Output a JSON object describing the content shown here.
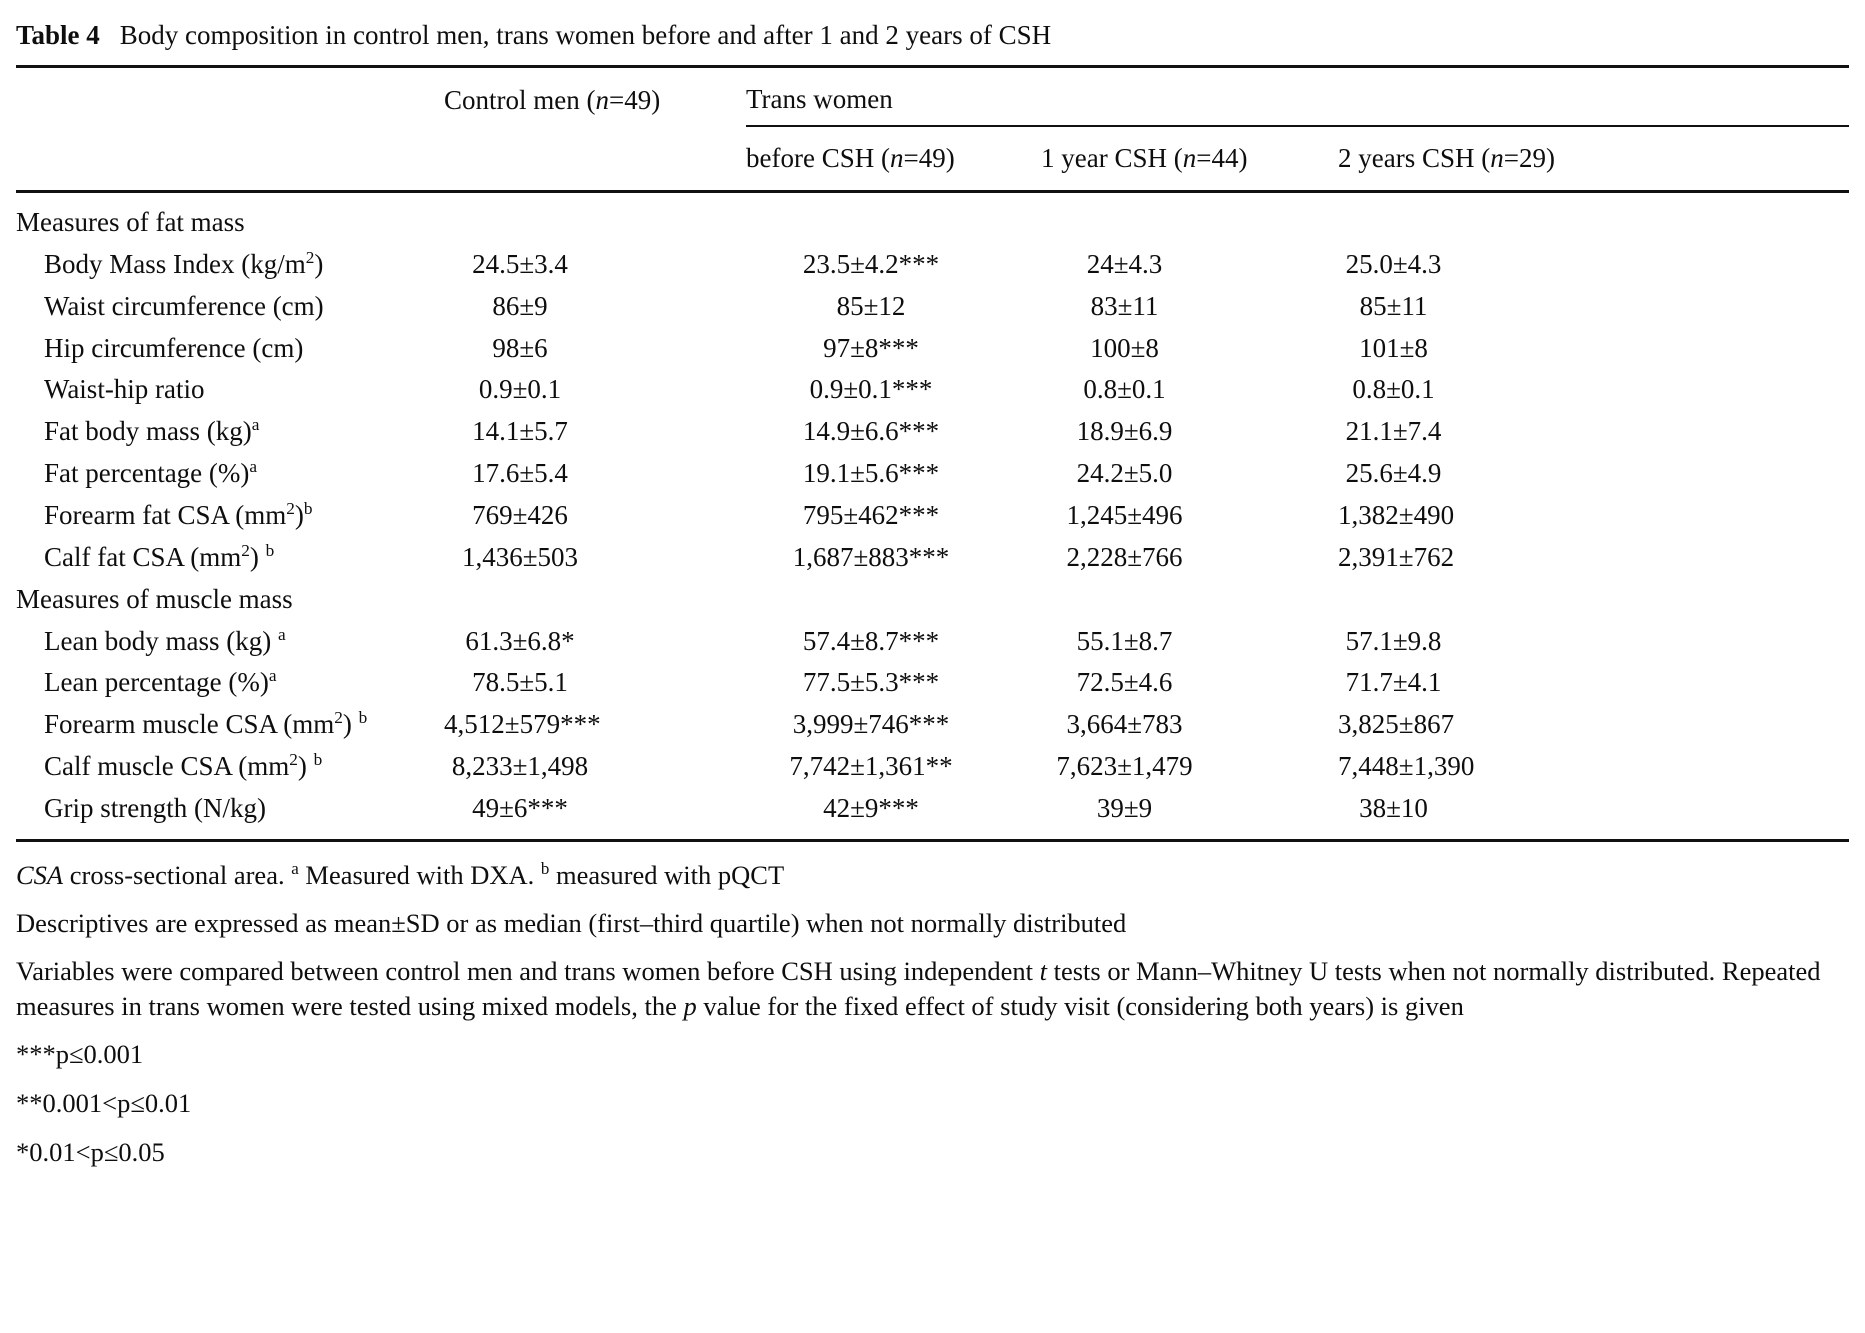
{
  "title": {
    "label": "Table 4",
    "text": "Body composition in control men, trans women before and after 1 and 2 years of CSH"
  },
  "table": {
    "header": {
      "control_col": "Control men (~{n}=49)",
      "group": "Trans women",
      "sub_cols": [
        "before CSH (~{n}=49)",
        "1 year CSH (~{n}=44)",
        "2 years CSH (~{n}=29)"
      ]
    },
    "sections": [
      {
        "title": "Measures of fat mass",
        "rows": [
          {
            "label": "Body Mass Index (kg/m^{2})",
            "values": [
              "24.5±3.4",
              "23.5±4.2***",
              "24±4.3",
              "25.0±4.3"
            ]
          },
          {
            "label": "Waist circumference (cm)",
            "values": [
              "86±9",
              "85±12",
              "83±11",
              "85±11"
            ]
          },
          {
            "label": "Hip circumference (cm)",
            "values": [
              "98±6",
              "97±8***",
              "100±8",
              "101±8"
            ]
          },
          {
            "label": "Waist-hip ratio",
            "values": [
              "0.9±0.1",
              "0.9±0.1***",
              "0.8±0.1",
              "0.8±0.1"
            ]
          },
          {
            "label": "Fat body mass (kg)^{a}",
            "values": [
              "14.1±5.7",
              "14.9±6.6***",
              "18.9±6.9",
              "21.1±7.4"
            ]
          },
          {
            "label": "Fat percentage (%)^{a}",
            "values": [
              "17.6±5.4",
              "19.1±5.6***",
              "24.2±5.0",
              "25.6±4.9"
            ]
          },
          {
            "label": "Forearm fat CSA (mm^{2})^{b}",
            "values": [
              "769±426",
              "795±462***",
              "1,245±496",
              "1,382±490"
            ]
          },
          {
            "label": "Calf fat CSA (mm^{2}) ^{b}",
            "values": [
              "1,436±503",
              "1,687±883***",
              "2,228±766",
              "2,391±762"
            ]
          }
        ]
      },
      {
        "title": "Measures of muscle mass",
        "rows": [
          {
            "label": "Lean body mass (kg) ^{a}",
            "values": [
              "61.3±6.8*",
              "57.4±8.7***",
              "55.1±8.7",
              "57.1±9.8"
            ]
          },
          {
            "label": "Lean percentage (%)^{a}",
            "values": [
              "78.5±5.1",
              "77.5±5.3***",
              "72.5±4.6",
              "71.7±4.1"
            ]
          },
          {
            "label": "Forearm muscle CSA (mm^{2}) ^{b}",
            "values": [
              "4,512±579***",
              "3,999±746***",
              "3,664±783",
              "3,825±867"
            ]
          },
          {
            "label": "Calf muscle CSA (mm^{2}) ^{b}",
            "values": [
              "8,233±1,498",
              "7,742±1,361**",
              "7,623±1,479",
              "7,448±1,390"
            ]
          },
          {
            "label": "Grip strength (N/kg)",
            "values": [
              "49±6***",
              "42±9***",
              "39±9",
              "38±10"
            ]
          }
        ]
      }
    ]
  },
  "footnotes": [
    {
      "kind": "note",
      "text": "~{CSA} cross-sectional area. ^{a} Measured with DXA. ^{b} measured with pQCT"
    },
    {
      "kind": "note",
      "text": "Descriptives are expressed as mean±SD or as median (first–third quartile) when not normally distributed"
    },
    {
      "kind": "note",
      "text": "Variables were compared between control men and trans women before CSH using independent ~{t} tests or Mann–Whitney U tests when not normally distributed. Repeated measures in trans women were tested using mixed models, the ~{p} value for the fixed effect of study visit (considering both years) is given"
    },
    {
      "kind": "sig",
      "text": "***p≤0.001"
    },
    {
      "kind": "sig",
      "text": "**0.001<p≤0.01"
    },
    {
      "kind": "sig",
      "text": "*0.01<p≤0.05"
    }
  ]
}
